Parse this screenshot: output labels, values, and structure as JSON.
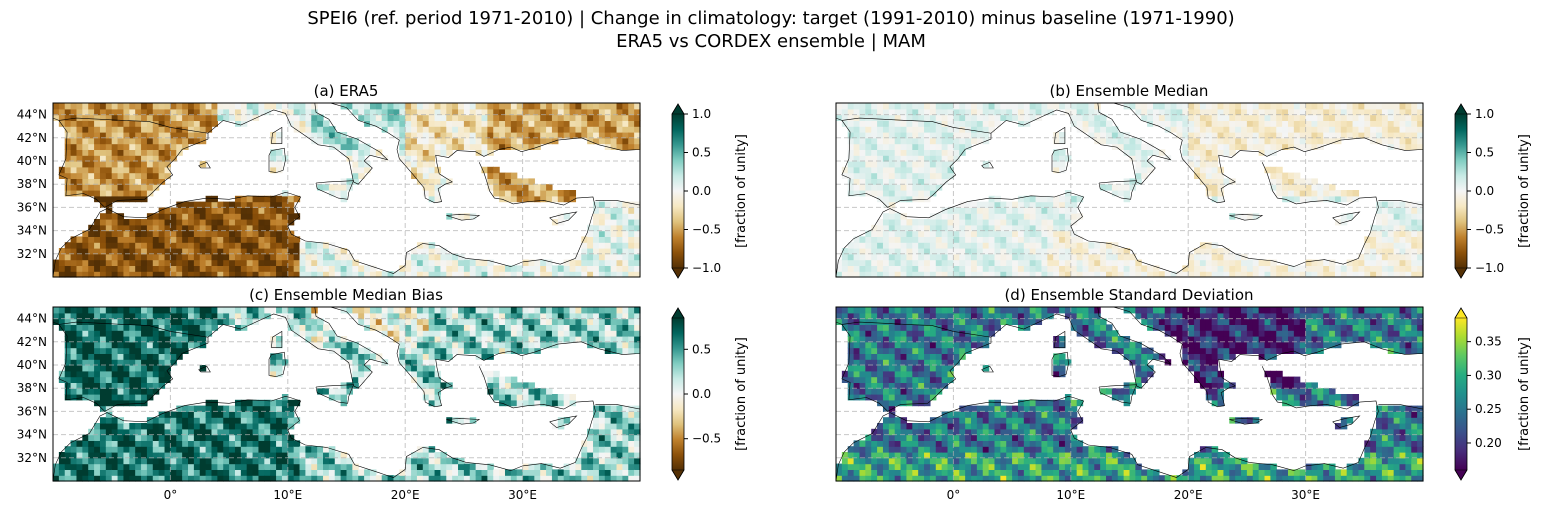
{
  "figure": {
    "title_line1": "SPEI6 (ref. period 1971-2010) | Change in climatology: target (1991-2010) minus baseline (1971-1990)",
    "title_line2": "ERA5 vs CORDEX ensemble | MAM"
  },
  "axes": {
    "lat_ticks": [
      "44°N",
      "42°N",
      "40°N",
      "38°N",
      "36°N",
      "34°N",
      "32°N"
    ],
    "lon_ticks": [
      "0°",
      "10°E",
      "20°E",
      "30°E"
    ]
  },
  "panels": [
    {
      "title": "(a) ERA5",
      "colormap": "BrBG",
      "colorbar": {
        "ticks": [
          "1.0",
          "0.5",
          "0.0",
          "−0.5",
          "−1.0"
        ],
        "vmin": -1.0,
        "vmax": 1.0,
        "extend": "both",
        "label": "[fraction of unity]"
      }
    },
    {
      "title": "(b) Ensemble Median",
      "colormap": "BrBG",
      "colorbar": {
        "ticks": [
          "1.0",
          "0.5",
          "0.0",
          "−0.5",
          "−1.0"
        ],
        "vmin": -1.0,
        "vmax": 1.0,
        "extend": "both",
        "label": "[fraction of unity]"
      }
    },
    {
      "title": "(c) Ensemble Median Bias",
      "colormap": "BrBG",
      "colorbar": {
        "ticks": [
          "0.5",
          "0.0",
          "−0.5"
        ],
        "vmin": -0.85,
        "vmax": 0.85,
        "extend": "both",
        "label": "[fraction of unity]"
      }
    },
    {
      "title": "(d) Ensemble Standard Deviation",
      "colormap": "viridis",
      "colorbar": {
        "ticks": [
          "0.35",
          "0.30",
          "0.25",
          "0.20"
        ],
        "vmin": 0.16,
        "vmax": 0.385,
        "extend": "both",
        "label": "[fraction of unity]"
      }
    }
  ],
  "colors": {
    "brbg": [
      "#543005",
      "#8c510a",
      "#bf812d",
      "#dfc27d",
      "#f6e8c3",
      "#f5f5f5",
      "#c7eae5",
      "#80cdc1",
      "#35978f",
      "#01665e",
      "#003c30"
    ],
    "viridis": [
      "#440154",
      "#472c7a",
      "#3b518b",
      "#2c718e",
      "#21908d",
      "#27ad81",
      "#5cc863",
      "#aadc32",
      "#fde725"
    ]
  }
}
